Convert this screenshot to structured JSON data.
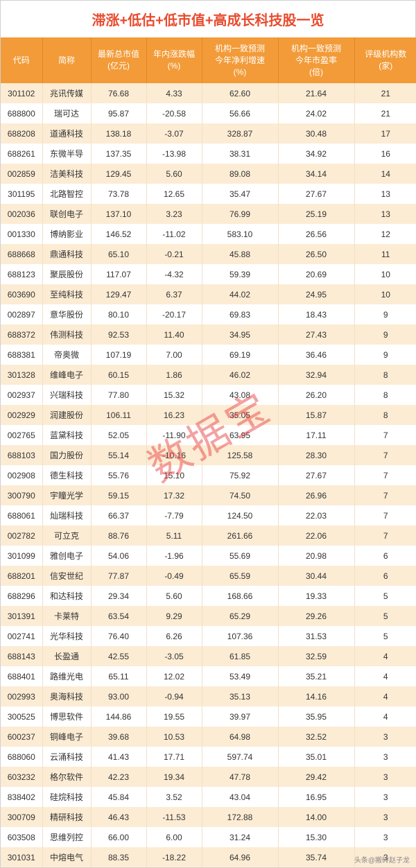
{
  "title": "滞涨+低估+低市值+高成长科技股一览",
  "watermark": "数据宝",
  "footer_credit": "头条@搬砖赵子龙",
  "columns": [
    {
      "label": "代码",
      "class": "col0"
    },
    {
      "label": "简称",
      "class": "col1"
    },
    {
      "label": "最新总市值\n(亿元)",
      "class": "col2"
    },
    {
      "label": "年内涨跌幅\n(%)",
      "class": "col3"
    },
    {
      "label": "机构一致预测\n今年净利增速\n(%)",
      "class": "col4"
    },
    {
      "label": "机构一致预测\n今年市盈率\n(倍)",
      "class": "col5"
    },
    {
      "label": "评级机构数\n(家)",
      "class": "col6"
    }
  ],
  "rows": [
    [
      "301102",
      "兆讯传媒",
      "76.68",
      "4.33",
      "62.60",
      "21.64",
      "21"
    ],
    [
      "688800",
      "瑞可达",
      "95.87",
      "-20.58",
      "56.66",
      "24.02",
      "21"
    ],
    [
      "688208",
      "道通科技",
      "138.18",
      "-3.07",
      "328.87",
      "30.48",
      "17"
    ],
    [
      "688261",
      "东微半导",
      "137.35",
      "-13.98",
      "38.31",
      "34.92",
      "16"
    ],
    [
      "002859",
      "洁美科技",
      "129.45",
      "5.60",
      "89.08",
      "34.14",
      "14"
    ],
    [
      "301195",
      "北路智控",
      "73.78",
      "12.65",
      "35.47",
      "27.67",
      "13"
    ],
    [
      "002036",
      "联创电子",
      "137.10",
      "3.23",
      "76.99",
      "25.19",
      "13"
    ],
    [
      "001330",
      "博纳影业",
      "146.52",
      "-11.02",
      "583.10",
      "26.56",
      "12"
    ],
    [
      "688668",
      "鼎通科技",
      "65.10",
      "-0.21",
      "45.88",
      "26.50",
      "11"
    ],
    [
      "688123",
      "聚辰股份",
      "117.07",
      "-4.32",
      "59.39",
      "20.69",
      "10"
    ],
    [
      "603690",
      "至纯科技",
      "129.47",
      "6.37",
      "44.02",
      "24.95",
      "10"
    ],
    [
      "002897",
      "意华股份",
      "80.10",
      "-20.17",
      "69.83",
      "18.43",
      "9"
    ],
    [
      "688372",
      "伟测科技",
      "92.53",
      "11.40",
      "34.95",
      "27.43",
      "9"
    ],
    [
      "688381",
      "帝奥微",
      "107.19",
      "7.00",
      "69.19",
      "36.46",
      "9"
    ],
    [
      "301328",
      "维峰电子",
      "60.15",
      "1.86",
      "46.02",
      "32.94",
      "8"
    ],
    [
      "002937",
      "兴瑞科技",
      "77.80",
      "15.32",
      "43.08",
      "26.20",
      "8"
    ],
    [
      "002929",
      "润建股份",
      "106.11",
      "16.23",
      "35.05",
      "15.87",
      "8"
    ],
    [
      "002765",
      "蓝黛科技",
      "52.05",
      "-11.90",
      "63.95",
      "17.11",
      "7"
    ],
    [
      "688103",
      "国力股份",
      "55.14",
      "-10.16",
      "125.58",
      "28.30",
      "7"
    ],
    [
      "002908",
      "德生科技",
      "55.76",
      "15.10",
      "75.92",
      "27.67",
      "7"
    ],
    [
      "300790",
      "宇瞳光学",
      "59.15",
      "17.32",
      "74.50",
      "26.96",
      "7"
    ],
    [
      "688061",
      "灿瑞科技",
      "66.37",
      "-7.79",
      "124.50",
      "22.03",
      "7"
    ],
    [
      "002782",
      "可立克",
      "88.76",
      "5.11",
      "261.66",
      "22.06",
      "7"
    ],
    [
      "301099",
      "雅创电子",
      "54.06",
      "-1.96",
      "55.69",
      "20.98",
      "6"
    ],
    [
      "688201",
      "信安世纪",
      "77.87",
      "-0.49",
      "65.59",
      "30.44",
      "6"
    ],
    [
      "688296",
      "和达科技",
      "29.34",
      "5.60",
      "168.66",
      "19.33",
      "5"
    ],
    [
      "301391",
      "卡莱特",
      "63.54",
      "9.29",
      "65.29",
      "29.26",
      "5"
    ],
    [
      "002741",
      "光华科技",
      "76.40",
      "6.26",
      "107.36",
      "31.53",
      "5"
    ],
    [
      "688143",
      "长盈通",
      "42.55",
      "-3.05",
      "61.85",
      "32.59",
      "4"
    ],
    [
      "688401",
      "路维光电",
      "65.11",
      "12.02",
      "53.49",
      "35.21",
      "4"
    ],
    [
      "002993",
      "奥海科技",
      "93.00",
      "-0.94",
      "35.13",
      "14.16",
      "4"
    ],
    [
      "300525",
      "博思软件",
      "144.86",
      "19.55",
      "39.97",
      "35.95",
      "4"
    ],
    [
      "600237",
      "铜峰电子",
      "39.68",
      "10.53",
      "64.98",
      "32.52",
      "3"
    ],
    [
      "688060",
      "云涌科技",
      "41.43",
      "17.71",
      "597.74",
      "35.01",
      "3"
    ],
    [
      "603232",
      "格尔软件",
      "42.23",
      "19.34",
      "47.78",
      "29.42",
      "3"
    ],
    [
      "838402",
      "硅烷科技",
      "45.84",
      "3.52",
      "43.04",
      "16.95",
      "3"
    ],
    [
      "300709",
      "精研科技",
      "46.43",
      "-11.53",
      "172.88",
      "14.00",
      "3"
    ],
    [
      "603508",
      "思维列控",
      "66.00",
      "6.00",
      "31.24",
      "15.30",
      "3"
    ],
    [
      "301031",
      "中熔电气",
      "88.35",
      "-18.22",
      "64.96",
      "35.74",
      "3"
    ]
  ]
}
